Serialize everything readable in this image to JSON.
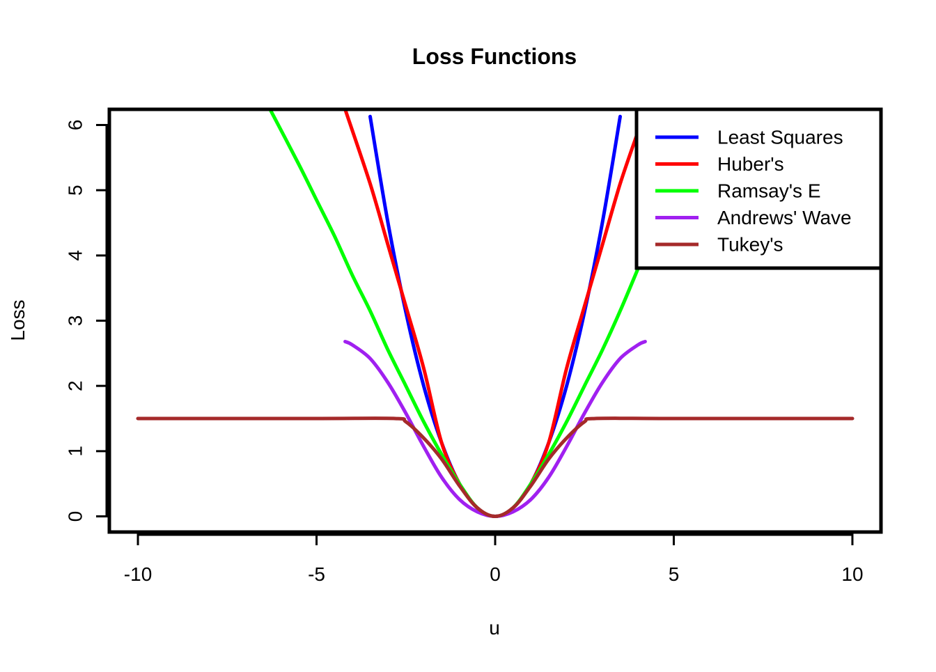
{
  "chart_data": {
    "type": "line",
    "title": "Loss Functions",
    "xlabel": "u",
    "ylabel": "Loss",
    "xlim": [
      -10.8,
      10.8
    ],
    "ylim": [
      -0.24,
      6.24
    ],
    "x_ticks": [
      -10,
      -5,
      0,
      5,
      10
    ],
    "x_tick_labels": [
      "-10",
      "-5",
      "0",
      "5",
      "10"
    ],
    "y_ticks": [
      0,
      1,
      2,
      3,
      4,
      5,
      6
    ],
    "y_tick_labels": [
      "0",
      "1",
      "2",
      "3",
      "4",
      "5",
      "6"
    ],
    "grid": false,
    "legend_position": "top-right",
    "series": [
      {
        "name": "Least Squares",
        "color": "#0000ff",
        "x": [
          -3.5,
          -3,
          -2.5,
          -2,
          -1.5,
          -1,
          -0.5,
          0,
          0.5,
          1,
          1.5,
          2,
          2.5,
          3,
          3.5
        ],
        "y": [
          6.13,
          4.5,
          3.13,
          2.0,
          1.13,
          0.5,
          0.13,
          0,
          0.13,
          0.5,
          1.13,
          2.0,
          3.13,
          4.5,
          6.13
        ]
      },
      {
        "name": "Huber's",
        "color": "#ff0000",
        "x": [
          -4.2,
          -3.5,
          -3,
          -2.5,
          -2,
          -1.5,
          -1,
          -0.5,
          0,
          0.5,
          1,
          1.5,
          2,
          2.5,
          3,
          3.5,
          4
        ],
        "y": [
          6.24,
          5.1,
          4.16,
          3.22,
          2.27,
          1.13,
          0.5,
          0.13,
          0,
          0.13,
          0.5,
          1.13,
          2.27,
          3.22,
          4.16,
          5.1,
          5.9
        ]
      },
      {
        "name": "Ramsay's E",
        "color": "#00ff00",
        "x": [
          -6.3,
          -5.5,
          -5,
          -4.5,
          -4,
          -3.5,
          -3,
          -2.5,
          -2,
          -1.5,
          -1,
          -0.5,
          0,
          0.5,
          1,
          1.5,
          2,
          2.5,
          3,
          3.5,
          4
        ],
        "y": [
          6.24,
          5.4,
          4.85,
          4.3,
          3.7,
          3.15,
          2.55,
          2.0,
          1.45,
          0.95,
          0.5,
          0.13,
          0,
          0.13,
          0.5,
          0.95,
          1.45,
          2.0,
          2.55,
          3.15,
          3.8
        ]
      },
      {
        "name": "Andrews' Wave",
        "color": "#a020f0",
        "x": [
          -4.2,
          -4,
          -3.5,
          -3,
          -2.5,
          -2,
          -1.5,
          -1,
          -0.5,
          0,
          0.5,
          1,
          1.5,
          2,
          2.5,
          3,
          3.5,
          4,
          4.2
        ],
        "y": [
          2.68,
          2.63,
          2.42,
          2.05,
          1.58,
          1.07,
          0.6,
          0.26,
          0.07,
          0,
          0.07,
          0.26,
          0.6,
          1.07,
          1.58,
          2.05,
          2.42,
          2.63,
          2.68
        ]
      },
      {
        "name": "Tukey's",
        "color": "#a52a2a",
        "x": [
          -10,
          -5,
          -2.8,
          -2.5,
          -2,
          -1.5,
          -1,
          -0.5,
          0,
          0.5,
          1,
          1.5,
          2,
          2.5,
          2.8,
          5,
          10
        ],
        "y": [
          1.5,
          1.5,
          1.5,
          1.45,
          1.2,
          0.88,
          0.47,
          0.13,
          0,
          0.13,
          0.47,
          0.88,
          1.2,
          1.45,
          1.5,
          1.5,
          1.5
        ]
      }
    ]
  }
}
